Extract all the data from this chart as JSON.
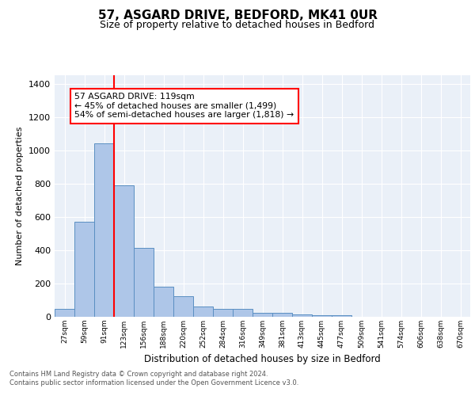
{
  "title1": "57, ASGARD DRIVE, BEDFORD, MK41 0UR",
  "title2": "Size of property relative to detached houses in Bedford",
  "xlabel": "Distribution of detached houses by size in Bedford",
  "ylabel": "Number of detached properties",
  "bar_labels": [
    "27sqm",
    "59sqm",
    "91sqm",
    "123sqm",
    "156sqm",
    "188sqm",
    "220sqm",
    "252sqm",
    "284sqm",
    "316sqm",
    "349sqm",
    "381sqm",
    "413sqm",
    "445sqm",
    "477sqm",
    "509sqm",
    "541sqm",
    "574sqm",
    "606sqm",
    "638sqm",
    "670sqm"
  ],
  "bar_values": [
    47,
    572,
    1040,
    790,
    415,
    180,
    125,
    62,
    47,
    48,
    25,
    25,
    15,
    10,
    10,
    0,
    0,
    0,
    0,
    0,
    0
  ],
  "bar_color": "#aec6e8",
  "bar_edge_color": "#5a8fc2",
  "background_color": "#eaf0f8",
  "grid_color": "#ffffff",
  "vline_color": "red",
  "vline_pos": 2.5,
  "annotation_text": "57 ASGARD DRIVE: 119sqm\n← 45% of detached houses are smaller (1,499)\n54% of semi-detached houses are larger (1,818) →",
  "annotation_box_color": "white",
  "annotation_box_edge": "red",
  "ylim": [
    0,
    1450
  ],
  "yticks": [
    0,
    200,
    400,
    600,
    800,
    1000,
    1200,
    1400
  ],
  "footer": "Contains HM Land Registry data © Crown copyright and database right 2024.\nContains public sector information licensed under the Open Government Licence v3.0."
}
